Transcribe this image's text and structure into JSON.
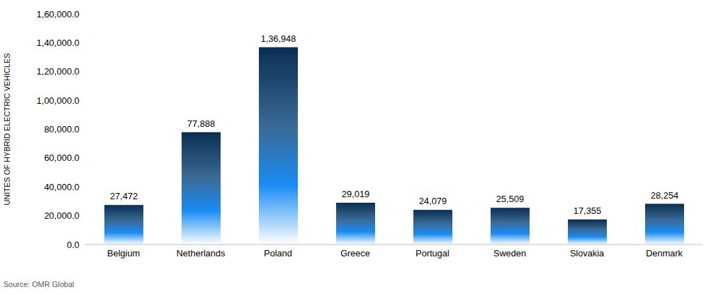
{
  "chart_data": {
    "type": "bar",
    "y_label": "UNITES OF HYBRID ELECTRIC VEHICLES",
    "annotation": "Source: OMR Global",
    "categories": [
      "Belgium",
      "Netherlands",
      "Poland",
      "Greece",
      "Portugal",
      "Sweden",
      "Slovakia",
      "Denmark"
    ],
    "values": [
      27472,
      77888,
      136948,
      29019,
      24079,
      25509,
      17355,
      28254
    ],
    "value_labels": [
      "27,472",
      "77,888",
      "1,36,948",
      "29,019",
      "24,079",
      "25,509",
      "17,355",
      "28,254"
    ],
    "color": "#0a2e52",
    "ylim": [
      0,
      160000
    ],
    "yticks": [
      {
        "value": 0,
        "label": "0.0"
      },
      {
        "value": 20000,
        "label": "20,000.0"
      },
      {
        "value": 40000,
        "label": "40,000.0"
      },
      {
        "value": 60000,
        "label": "60,000.0"
      },
      {
        "value": 80000,
        "label": "80,000.0"
      },
      {
        "value": 100000,
        "label": "1,00,000.0"
      },
      {
        "value": 120000,
        "label": "1,20,000.0"
      },
      {
        "value": 140000,
        "label": "1,40,000.0"
      },
      {
        "value": 160000,
        "label": "1,60,000.0"
      }
    ],
    "grid": false,
    "data_labels": true
  }
}
